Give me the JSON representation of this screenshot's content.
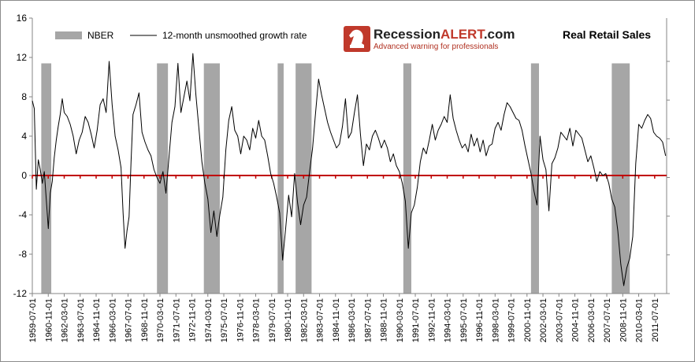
{
  "chart_data": {
    "type": "line",
    "title": "Real Retail Sales",
    "brand": {
      "name_part1": "Recession",
      "name_part2": "ALERT",
      "name_part3": ".com",
      "tagline": "Advanced warning for professionals",
      "logo_icon": "chess-knight-icon"
    },
    "legend": {
      "placement": "top-left",
      "items": [
        {
          "label": "NBER",
          "kind": "shaded-band",
          "color": "#a6a6a6"
        },
        {
          "label": "12-month unsmoothed growth rate",
          "kind": "line",
          "color": "#000000"
        }
      ]
    },
    "ylim": [
      -12,
      16
    ],
    "yticks": [
      "-12",
      "-8",
      "-4",
      "0",
      "4",
      "8",
      "12",
      "16"
    ],
    "xlim": [
      "1959-07",
      "2012-07"
    ],
    "xticks": [
      "1959-07-01",
      "1960-11-01",
      "1962-03-01",
      "1963-07-01",
      "1964-11-01",
      "1966-03-01",
      "1967-07-01",
      "1968-11-01",
      "1970-03-01",
      "1971-07-01",
      "1972-11-01",
      "1974-03-01",
      "1975-07-01",
      "1976-11-01",
      "1978-03-01",
      "1979-07-01",
      "1980-11-01",
      "1982-03-01",
      "1983-07-01",
      "1984-11-01",
      "1986-03-01",
      "1987-07-01",
      "1988-11-01",
      "1990-03-01",
      "1991-07-01",
      "1992-11-01",
      "1994-03-01",
      "1995-07-01",
      "1996-11-01",
      "1998-03-01",
      "1999-07-01",
      "2000-11-01",
      "2002-03-01",
      "2003-07-01",
      "2004-11-01",
      "2006-03-01",
      "2007-07-01",
      "2008-11-01",
      "2010-03-01",
      "2011-07-01"
    ],
    "zero_line_color": "#c00000",
    "recessions": [
      {
        "start": "1960-04",
        "end": "1961-02"
      },
      {
        "start": "1969-12",
        "end": "1970-11"
      },
      {
        "start": "1973-11",
        "end": "1975-03"
      },
      {
        "start": "1980-01",
        "end": "1980-07"
      },
      {
        "start": "1981-07",
        "end": "1982-11"
      },
      {
        "start": "1990-07",
        "end": "1991-03"
      },
      {
        "start": "2001-03",
        "end": "2001-11"
      },
      {
        "start": "2007-12",
        "end": "2009-06"
      }
    ],
    "series": [
      {
        "name": "12-month unsmoothed growth rate",
        "color": "#000000",
        "points": [
          [
            "1959-07",
            7.6
          ],
          [
            "1959-09",
            6.8
          ],
          [
            "1959-11",
            -1.4
          ],
          [
            "1960-01",
            1.6
          ],
          [
            "1960-03",
            0.6
          ],
          [
            "1960-05",
            -0.8
          ],
          [
            "1960-07",
            0.4
          ],
          [
            "1960-09",
            -2.4
          ],
          [
            "1960-11",
            -5.4
          ],
          [
            "1961-01",
            -1.8
          ],
          [
            "1961-03",
            -0.6
          ],
          [
            "1961-05",
            1.8
          ],
          [
            "1961-07",
            3.6
          ],
          [
            "1961-09",
            5.0
          ],
          [
            "1961-11",
            6.2
          ],
          [
            "1962-01",
            7.8
          ],
          [
            "1962-03",
            6.4
          ],
          [
            "1962-06",
            6.0
          ],
          [
            "1962-09",
            5.2
          ],
          [
            "1962-12",
            4.0
          ],
          [
            "1963-03",
            2.2
          ],
          [
            "1963-06",
            3.6
          ],
          [
            "1963-09",
            4.4
          ],
          [
            "1963-12",
            6.0
          ],
          [
            "1964-03",
            5.4
          ],
          [
            "1964-06",
            4.2
          ],
          [
            "1964-09",
            2.8
          ],
          [
            "1964-12",
            4.6
          ],
          [
            "1965-03",
            7.2
          ],
          [
            "1965-06",
            7.8
          ],
          [
            "1965-09",
            6.4
          ],
          [
            "1965-12",
            11.6
          ],
          [
            "1966-03",
            7.2
          ],
          [
            "1966-06",
            4.0
          ],
          [
            "1966-09",
            2.6
          ],
          [
            "1966-12",
            0.8
          ],
          [
            "1967-02",
            -3.8
          ],
          [
            "1967-04",
            -7.4
          ],
          [
            "1967-06",
            -5.6
          ],
          [
            "1967-08",
            -4.2
          ],
          [
            "1967-10",
            1.4
          ],
          [
            "1967-12",
            6.2
          ],
          [
            "1968-03",
            7.2
          ],
          [
            "1968-06",
            8.4
          ],
          [
            "1968-09",
            4.4
          ],
          [
            "1968-12",
            3.4
          ],
          [
            "1969-03",
            2.6
          ],
          [
            "1969-06",
            2.0
          ],
          [
            "1969-09",
            0.6
          ],
          [
            "1969-12",
            -0.2
          ],
          [
            "1970-03",
            -0.8
          ],
          [
            "1970-06",
            0.4
          ],
          [
            "1970-09",
            -1.8
          ],
          [
            "1970-12",
            1.8
          ],
          [
            "1971-03",
            5.4
          ],
          [
            "1971-06",
            7.0
          ],
          [
            "1971-09",
            11.4
          ],
          [
            "1971-12",
            6.4
          ],
          [
            "1972-03",
            8.0
          ],
          [
            "1972-06",
            9.6
          ],
          [
            "1972-09",
            7.6
          ],
          [
            "1972-12",
            12.4
          ],
          [
            "1973-03",
            8.2
          ],
          [
            "1973-06",
            4.8
          ],
          [
            "1973-09",
            1.4
          ],
          [
            "1973-12",
            -0.8
          ],
          [
            "1974-03",
            -2.4
          ],
          [
            "1974-06",
            -5.8
          ],
          [
            "1974-09",
            -3.6
          ],
          [
            "1974-12",
            -6.2
          ],
          [
            "1975-03",
            -4.0
          ],
          [
            "1975-06",
            -2.2
          ],
          [
            "1975-09",
            2.6
          ],
          [
            "1975-12",
            5.6
          ],
          [
            "1976-03",
            7.0
          ],
          [
            "1976-06",
            4.6
          ],
          [
            "1976-09",
            4.0
          ],
          [
            "1976-12",
            2.2
          ],
          [
            "1977-03",
            4.0
          ],
          [
            "1977-06",
            3.6
          ],
          [
            "1977-09",
            2.6
          ],
          [
            "1977-12",
            4.8
          ],
          [
            "1978-03",
            3.8
          ],
          [
            "1978-06",
            5.6
          ],
          [
            "1978-09",
            4.0
          ],
          [
            "1978-12",
            3.6
          ],
          [
            "1979-03",
            2.0
          ],
          [
            "1979-06",
            0.2
          ],
          [
            "1979-09",
            -0.8
          ],
          [
            "1979-12",
            -2.2
          ],
          [
            "1980-03",
            -3.8
          ],
          [
            "1980-06",
            -8.6
          ],
          [
            "1980-09",
            -5.4
          ],
          [
            "1980-12",
            -2.0
          ],
          [
            "1981-03",
            -4.2
          ],
          [
            "1981-06",
            0.2
          ],
          [
            "1981-09",
            -2.8
          ],
          [
            "1981-12",
            -5.0
          ],
          [
            "1982-03",
            -3.0
          ],
          [
            "1982-06",
            -2.2
          ],
          [
            "1982-09",
            0.4
          ],
          [
            "1982-12",
            2.8
          ],
          [
            "1983-03",
            6.4
          ],
          [
            "1983-06",
            9.8
          ],
          [
            "1983-09",
            8.2
          ],
          [
            "1983-12",
            6.8
          ],
          [
            "1984-03",
            5.4
          ],
          [
            "1984-06",
            4.4
          ],
          [
            "1984-09",
            3.6
          ],
          [
            "1984-12",
            2.8
          ],
          [
            "1985-03",
            3.2
          ],
          [
            "1985-06",
            5.0
          ],
          [
            "1985-09",
            7.8
          ],
          [
            "1985-12",
            3.8
          ],
          [
            "1986-03",
            4.4
          ],
          [
            "1986-06",
            6.4
          ],
          [
            "1986-09",
            8.2
          ],
          [
            "1986-12",
            4.2
          ],
          [
            "1987-03",
            1.0
          ],
          [
            "1987-06",
            3.2
          ],
          [
            "1987-09",
            2.6
          ],
          [
            "1987-12",
            4.0
          ],
          [
            "1988-03",
            4.6
          ],
          [
            "1988-06",
            3.8
          ],
          [
            "1988-09",
            2.8
          ],
          [
            "1988-12",
            3.6
          ],
          [
            "1989-03",
            2.8
          ],
          [
            "1989-06",
            1.4
          ],
          [
            "1989-09",
            2.2
          ],
          [
            "1989-12",
            1.0
          ],
          [
            "1990-03",
            0.4
          ],
          [
            "1990-06",
            -0.8
          ],
          [
            "1990-09",
            -2.6
          ],
          [
            "1990-12",
            -7.4
          ],
          [
            "1991-03",
            -3.8
          ],
          [
            "1991-06",
            -3.0
          ],
          [
            "1991-09",
            -1.2
          ],
          [
            "1991-12",
            1.4
          ],
          [
            "1992-03",
            2.8
          ],
          [
            "1992-06",
            2.2
          ],
          [
            "1992-09",
            3.6
          ],
          [
            "1992-12",
            5.2
          ],
          [
            "1993-03",
            3.6
          ],
          [
            "1993-06",
            4.6
          ],
          [
            "1993-09",
            5.2
          ],
          [
            "1993-12",
            6.0
          ],
          [
            "1994-03",
            5.4
          ],
          [
            "1994-06",
            8.2
          ],
          [
            "1994-09",
            5.8
          ],
          [
            "1994-12",
            4.6
          ],
          [
            "1995-03",
            3.6
          ],
          [
            "1995-06",
            2.8
          ],
          [
            "1995-09",
            3.2
          ],
          [
            "1995-12",
            2.4
          ],
          [
            "1996-03",
            4.2
          ],
          [
            "1996-06",
            3.0
          ],
          [
            "1996-09",
            3.8
          ],
          [
            "1996-12",
            2.4
          ],
          [
            "1997-03",
            3.6
          ],
          [
            "1997-06",
            2.0
          ],
          [
            "1997-09",
            3.0
          ],
          [
            "1997-12",
            3.2
          ],
          [
            "1998-03",
            4.8
          ],
          [
            "1998-06",
            5.4
          ],
          [
            "1998-09",
            4.6
          ],
          [
            "1998-12",
            6.2
          ],
          [
            "1999-03",
            7.4
          ],
          [
            "1999-06",
            7.0
          ],
          [
            "1999-09",
            6.4
          ],
          [
            "1999-12",
            5.8
          ],
          [
            "2000-03",
            5.6
          ],
          [
            "2000-06",
            4.6
          ],
          [
            "2000-09",
            3.0
          ],
          [
            "2000-12",
            1.6
          ],
          [
            "2001-03",
            0.2
          ],
          [
            "2001-06",
            -1.6
          ],
          [
            "2001-09",
            -3.0
          ],
          [
            "2001-12",
            4.0
          ],
          [
            "2002-03",
            1.6
          ],
          [
            "2002-06",
            0.6
          ],
          [
            "2002-09",
            -3.6
          ],
          [
            "2002-12",
            1.2
          ],
          [
            "2003-03",
            1.8
          ],
          [
            "2003-06",
            2.8
          ],
          [
            "2003-09",
            4.4
          ],
          [
            "2003-12",
            4.0
          ],
          [
            "2004-03",
            3.6
          ],
          [
            "2004-06",
            4.8
          ],
          [
            "2004-09",
            3.0
          ],
          [
            "2004-12",
            4.6
          ],
          [
            "2005-03",
            4.2
          ],
          [
            "2005-06",
            3.8
          ],
          [
            "2005-09",
            2.6
          ],
          [
            "2005-12",
            1.4
          ],
          [
            "2006-03",
            2.0
          ],
          [
            "2006-06",
            0.8
          ],
          [
            "2006-09",
            -0.6
          ],
          [
            "2006-12",
            0.4
          ],
          [
            "2007-03",
            0.0
          ],
          [
            "2007-06",
            0.2
          ],
          [
            "2007-09",
            -0.8
          ],
          [
            "2007-12",
            -2.4
          ],
          [
            "2008-03",
            -3.2
          ],
          [
            "2008-06",
            -5.6
          ],
          [
            "2008-09",
            -9.0
          ],
          [
            "2008-12",
            -11.2
          ],
          [
            "2009-03",
            -9.4
          ],
          [
            "2009-06",
            -8.4
          ],
          [
            "2009-09",
            -6.2
          ],
          [
            "2009-12",
            1.2
          ],
          [
            "2010-03",
            5.2
          ],
          [
            "2010-06",
            4.8
          ],
          [
            "2010-09",
            5.6
          ],
          [
            "2010-12",
            6.2
          ],
          [
            "2011-03",
            5.8
          ],
          [
            "2011-06",
            4.4
          ],
          [
            "2011-09",
            4.0
          ],
          [
            "2011-12",
            3.8
          ],
          [
            "2012-03",
            3.4
          ],
          [
            "2012-06",
            2.0
          ]
        ]
      }
    ]
  }
}
